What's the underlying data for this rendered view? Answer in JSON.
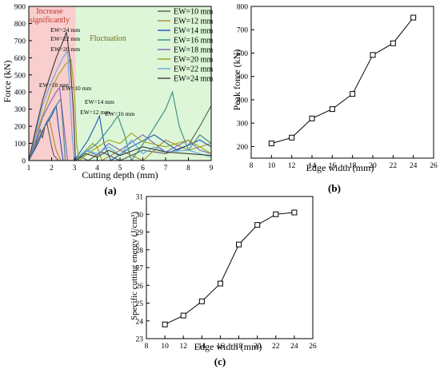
{
  "chart_data": [
    {
      "panel": "(a)",
      "type": "line",
      "xlabel": "Cutting depth (mm)",
      "ylabel": "Force (kN)",
      "xlim": [
        1,
        9
      ],
      "ylim": [
        0,
        900
      ],
      "xticks": [
        1,
        2,
        3,
        4,
        5,
        6,
        7,
        8,
        9
      ],
      "yticks": [
        0,
        100,
        200,
        300,
        400,
        500,
        600,
        700,
        800,
        900
      ],
      "grid": false,
      "legend_position": "top-right",
      "regions": [
        {
          "label": "Increase significantly",
          "x_range": [
            1,
            3.05
          ],
          "color": "#f7c6c6",
          "text_color": "#c0392b"
        },
        {
          "label": "Fluctuation",
          "x_range": [
            3.05,
            9
          ],
          "color": "#d6f5d0",
          "text_color": "#7a6a1e"
        }
      ],
      "series": [
        {
          "name": "EW=10 mm",
          "color": "#5a5a5a",
          "points": [
            [
              1.0,
              0
            ],
            [
              1.2,
              60
            ],
            [
              1.35,
              120
            ],
            [
              1.5,
              180
            ],
            [
              1.6,
              130
            ],
            [
              1.7,
              200
            ],
            [
              1.8,
              215
            ],
            [
              1.9,
              150
            ],
            [
              2.0,
              80
            ],
            [
              2.1,
              30
            ],
            [
              2.3,
              0
            ],
            [
              3.0,
              0
            ],
            [
              3.3,
              20
            ],
            [
              3.6,
              0
            ],
            [
              4.2,
              50
            ],
            [
              5.0,
              0
            ],
            [
              6.0,
              60
            ],
            [
              7.0,
              40
            ],
            [
              8.0,
              90
            ],
            [
              8.5,
              200
            ],
            [
              9.0,
              320
            ]
          ]
        },
        {
          "name": "EW=12 mm",
          "color": "#a88a2e",
          "points": [
            [
              1.0,
              0
            ],
            [
              1.3,
              80
            ],
            [
              1.5,
              150
            ],
            [
              1.7,
              200
            ],
            [
              1.9,
              240
            ],
            [
              2.0,
              180
            ],
            [
              2.1,
              120
            ],
            [
              2.2,
              60
            ],
            [
              2.4,
              0
            ],
            [
              3.0,
              0
            ],
            [
              3.5,
              60
            ],
            [
              3.8,
              100
            ],
            [
              4.0,
              80
            ],
            [
              4.2,
              0
            ],
            [
              5.0,
              60
            ],
            [
              6.0,
              0
            ],
            [
              7.0,
              120
            ],
            [
              8.0,
              60
            ],
            [
              9.0,
              100
            ]
          ]
        },
        {
          "name": "EW=14 mm",
          "color": "#2255b8",
          "points": [
            [
              1.0,
              0
            ],
            [
              1.4,
              100
            ],
            [
              1.7,
              200
            ],
            [
              2.0,
              260
            ],
            [
              2.2,
              320
            ],
            [
              2.3,
              200
            ],
            [
              2.4,
              100
            ],
            [
              2.5,
              0
            ],
            [
              3.0,
              0
            ],
            [
              3.6,
              120
            ],
            [
              3.9,
              200
            ],
            [
              4.1,
              260
            ],
            [
              4.3,
              100
            ],
            [
              4.6,
              0
            ],
            [
              5.5,
              80
            ],
            [
              6.5,
              150
            ],
            [
              7.5,
              60
            ],
            [
              8.5,
              120
            ],
            [
              9.0,
              80
            ]
          ]
        },
        {
          "name": "EW=16 mm",
          "color": "#3a8a86",
          "points": [
            [
              1.0,
              0
            ],
            [
              1.4,
              120
            ],
            [
              1.8,
              230
            ],
            [
              2.1,
              300
            ],
            [
              2.4,
              360
            ],
            [
              2.5,
              200
            ],
            [
              2.6,
              0
            ],
            [
              3.0,
              0
            ],
            [
              4.0,
              100
            ],
            [
              4.6,
              200
            ],
            [
              4.9,
              260
            ],
            [
              5.2,
              150
            ],
            [
              5.5,
              0
            ],
            [
              6.3,
              150
            ],
            [
              7.0,
              300
            ],
            [
              7.3,
              400
            ],
            [
              7.6,
              200
            ],
            [
              8.0,
              60
            ],
            [
              8.5,
              150
            ],
            [
              9.0,
              100
            ]
          ]
        },
        {
          "name": "EW=18 mm",
          "color": "#7e63b8",
          "points": [
            [
              1.0,
              0
            ],
            [
              1.3,
              120
            ],
            [
              1.6,
              250
            ],
            [
              1.9,
              330
            ],
            [
              2.2,
              400
            ],
            [
              2.35,
              425
            ],
            [
              2.5,
              250
            ],
            [
              2.7,
              0
            ],
            [
              3.0,
              0
            ],
            [
              3.5,
              60
            ],
            [
              4.0,
              30
            ],
            [
              4.5,
              100
            ],
            [
              5.0,
              60
            ],
            [
              6.0,
              150
            ],
            [
              6.5,
              100
            ],
            [
              7.0,
              50
            ],
            [
              8.0,
              120
            ],
            [
              8.5,
              60
            ],
            [
              9.0,
              40
            ]
          ]
        },
        {
          "name": "EW=20 mm",
          "color": "#9aa31c",
          "points": [
            [
              1.0,
              0
            ],
            [
              1.3,
              150
            ],
            [
              1.7,
              300
            ],
            [
              2.0,
              420
            ],
            [
              2.3,
              500
            ],
            [
              2.6,
              560
            ],
            [
              2.85,
              590
            ],
            [
              3.0,
              400
            ],
            [
              3.1,
              100
            ],
            [
              3.2,
              0
            ],
            [
              3.8,
              60
            ],
            [
              4.5,
              120
            ],
            [
              5.0,
              100
            ],
            [
              5.5,
              160
            ],
            [
              6.0,
              110
            ],
            [
              7.0,
              80
            ],
            [
              8.0,
              120
            ],
            [
              9.0,
              40
            ]
          ]
        },
        {
          "name": "EW=22 mm",
          "color": "#5fa8e8",
          "points": [
            [
              1.0,
              0
            ],
            [
              1.3,
              160
            ],
            [
              1.6,
              320
            ],
            [
              1.9,
              430
            ],
            [
              2.2,
              520
            ],
            [
              2.5,
              600
            ],
            [
              2.7,
              640
            ],
            [
              2.8,
              400
            ],
            [
              2.9,
              150
            ],
            [
              3.0,
              0
            ],
            [
              3.5,
              60
            ],
            [
              4.0,
              40
            ],
            [
              4.5,
              80
            ],
            [
              5.0,
              30
            ],
            [
              5.5,
              120
            ],
            [
              6.0,
              40
            ],
            [
              6.5,
              80
            ],
            [
              7.0,
              50
            ],
            [
              8.0,
              60
            ],
            [
              9.0,
              20
            ]
          ]
        },
        {
          "name": "EW=24 mm",
          "color": "#3c3c3c",
          "points": [
            [
              1.0,
              0
            ],
            [
              1.3,
              180
            ],
            [
              1.6,
              350
            ],
            [
              1.9,
              480
            ],
            [
              2.2,
              600
            ],
            [
              2.45,
              680
            ],
            [
              2.65,
              750
            ],
            [
              2.8,
              600
            ],
            [
              2.95,
              300
            ],
            [
              3.05,
              0
            ],
            [
              3.5,
              40
            ],
            [
              4.0,
              20
            ],
            [
              4.5,
              60
            ],
            [
              5.0,
              30
            ],
            [
              6.0,
              80
            ],
            [
              7.0,
              50
            ],
            [
              8.0,
              40
            ],
            [
              9.0,
              30
            ]
          ]
        }
      ],
      "annotations": [
        {
          "text": "EW=24 mm",
          "x": 2.6,
          "y": 750
        },
        {
          "text": "EW=22 mm",
          "x": 2.6,
          "y": 700
        },
        {
          "text": "EW=20 mm",
          "x": 2.6,
          "y": 640
        },
        {
          "text": "EW=18 mm",
          "x": 2.1,
          "y": 430
        },
        {
          "text": "EW=10 mm",
          "x": 3.1,
          "y": 410
        },
        {
          "text": "EW=14 mm",
          "x": 4.1,
          "y": 330
        },
        {
          "text": "EW=12 mm",
          "x": 3.9,
          "y": 270
        },
        {
          "text": "EW=16 mm",
          "x": 5.0,
          "y": 260
        }
      ]
    },
    {
      "panel": "(b)",
      "type": "line",
      "xlabel": "Edge width (mm)",
      "ylabel": "Peak force (kN)",
      "xlim": [
        8,
        26
      ],
      "ylim": [
        150,
        800
      ],
      "xticks": [
        8,
        10,
        12,
        14,
        16,
        18,
        20,
        22,
        24,
        26
      ],
      "yticks": [
        200,
        300,
        400,
        500,
        600,
        700,
        800
      ],
      "grid": false,
      "x": [
        10,
        12,
        14,
        16,
        18,
        20,
        22,
        24
      ],
      "values": [
        213,
        238,
        320,
        360,
        425,
        592,
        642,
        752
      ]
    },
    {
      "panel": "(c)",
      "type": "line",
      "xlabel": "Edge width (mm)",
      "ylabel": "Specific cutting energy (J/cm³)",
      "xlim": [
        8,
        26
      ],
      "ylim": [
        23,
        31
      ],
      "xticks": [
        8,
        10,
        12,
        14,
        16,
        18,
        20,
        22,
        24,
        26
      ],
      "yticks": [
        23,
        24,
        25,
        26,
        27,
        28,
        29,
        30,
        31
      ],
      "grid": false,
      "x": [
        10,
        12,
        14,
        16,
        18,
        20,
        22,
        24
      ],
      "values": [
        23.8,
        24.3,
        25.1,
        26.1,
        28.3,
        29.4,
        30.0,
        30.1
      ]
    }
  ]
}
